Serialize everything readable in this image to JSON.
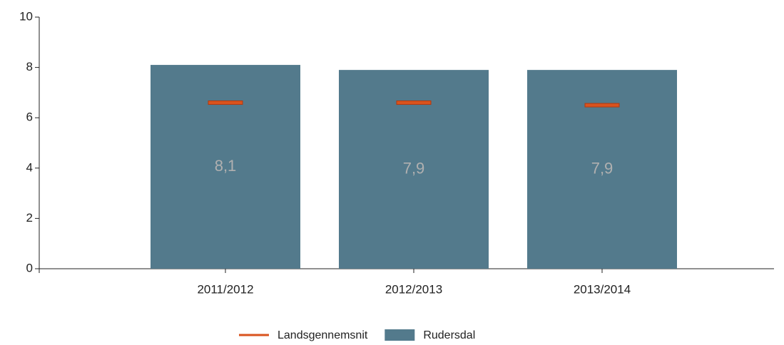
{
  "chart_data": {
    "type": "bar",
    "categories": [
      "2011/2012",
      "2012/2013",
      "2013/2014"
    ],
    "series": [
      {
        "name": "Landsgennemsnit",
        "type": "marker",
        "color": "#d9531e",
        "values": [
          6.6,
          6.6,
          6.5
        ]
      },
      {
        "name": "Rudersdal",
        "type": "bar",
        "color": "#537a8c",
        "values": [
          8.1,
          7.9,
          7.9
        ],
        "value_labels": [
          "8,1",
          "7,9",
          "7,9"
        ]
      }
    ],
    "ylim": [
      0,
      10
    ],
    "yticks": [
      0,
      2,
      4,
      6,
      8,
      10
    ],
    "grid": false,
    "legend": "bottom"
  }
}
